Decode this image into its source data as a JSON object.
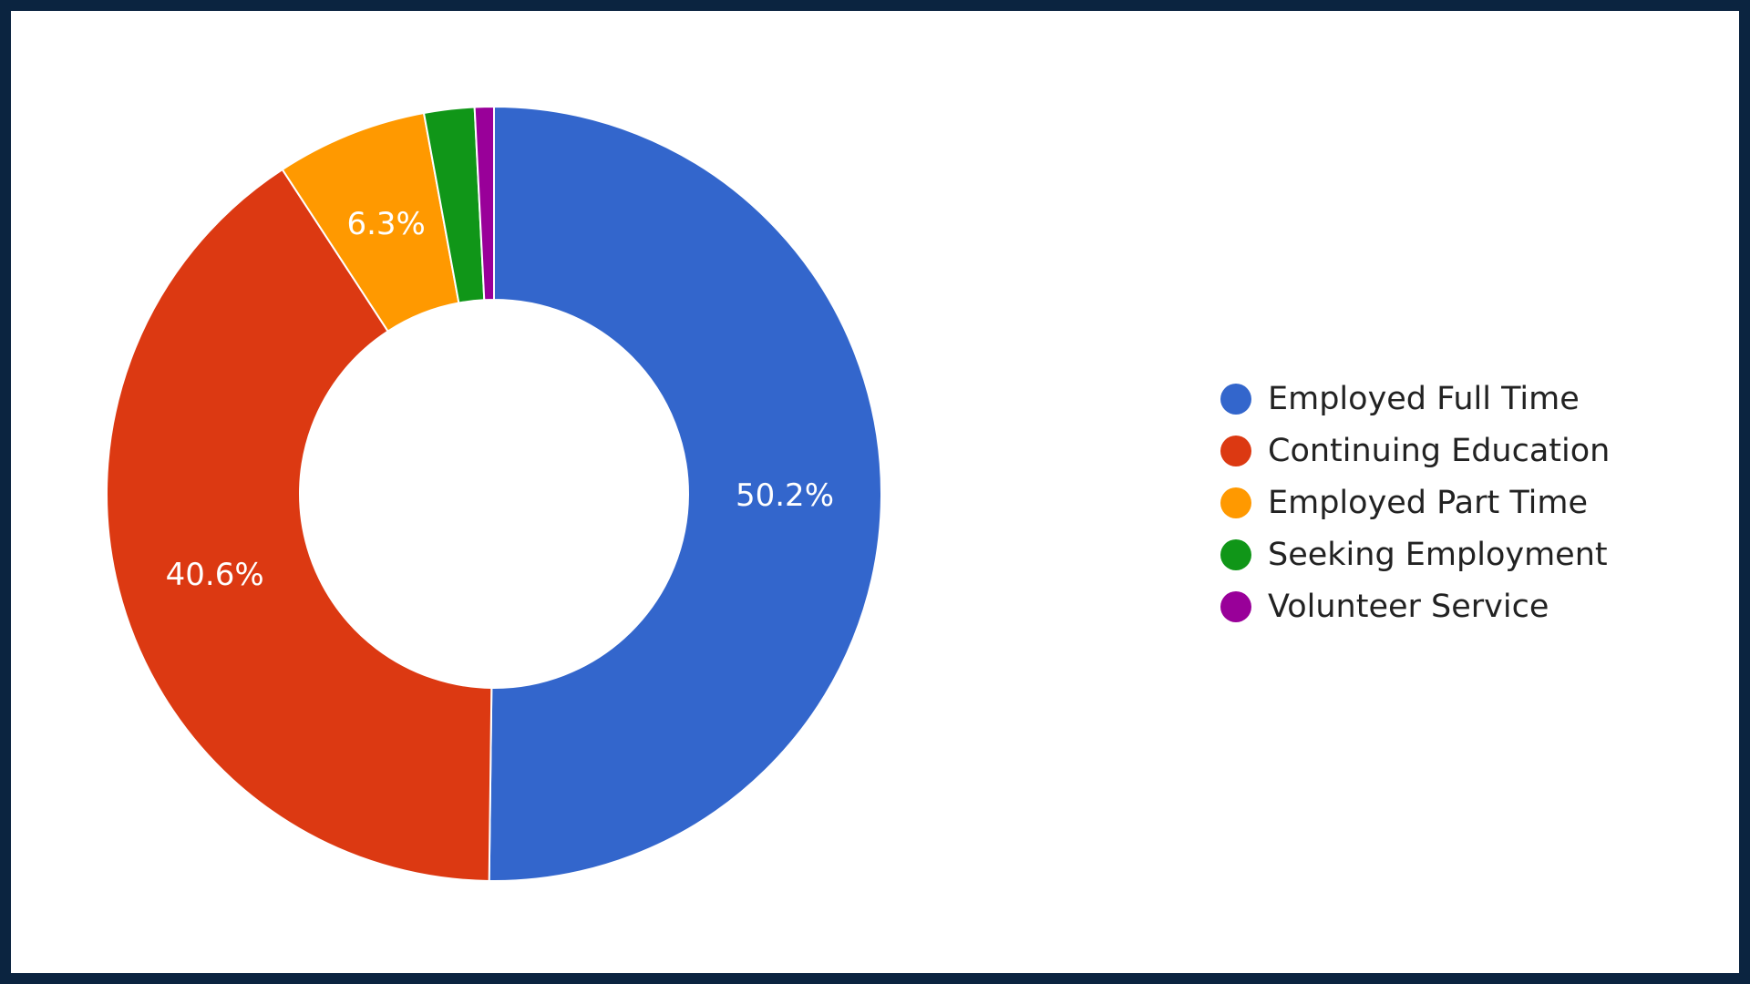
{
  "chart_data": {
    "type": "pie",
    "donut": true,
    "legend_position": "right",
    "series": [
      {
        "name": "Employed Full Time",
        "value": 50.2,
        "label": "50.2%",
        "color": "#3366cc"
      },
      {
        "name": "Continuing Education",
        "value": 40.6,
        "label": "40.6%",
        "color": "#dc3912"
      },
      {
        "name": "Employed Part Time",
        "value": 6.3,
        "label": "6.3%",
        "color": "#ff9900"
      },
      {
        "name": "Seeking Employment",
        "value": 2.1,
        "label": "",
        "color": "#109618"
      },
      {
        "name": "Volunteer Service",
        "value": 0.8,
        "label": "",
        "color": "#990099"
      }
    ]
  }
}
